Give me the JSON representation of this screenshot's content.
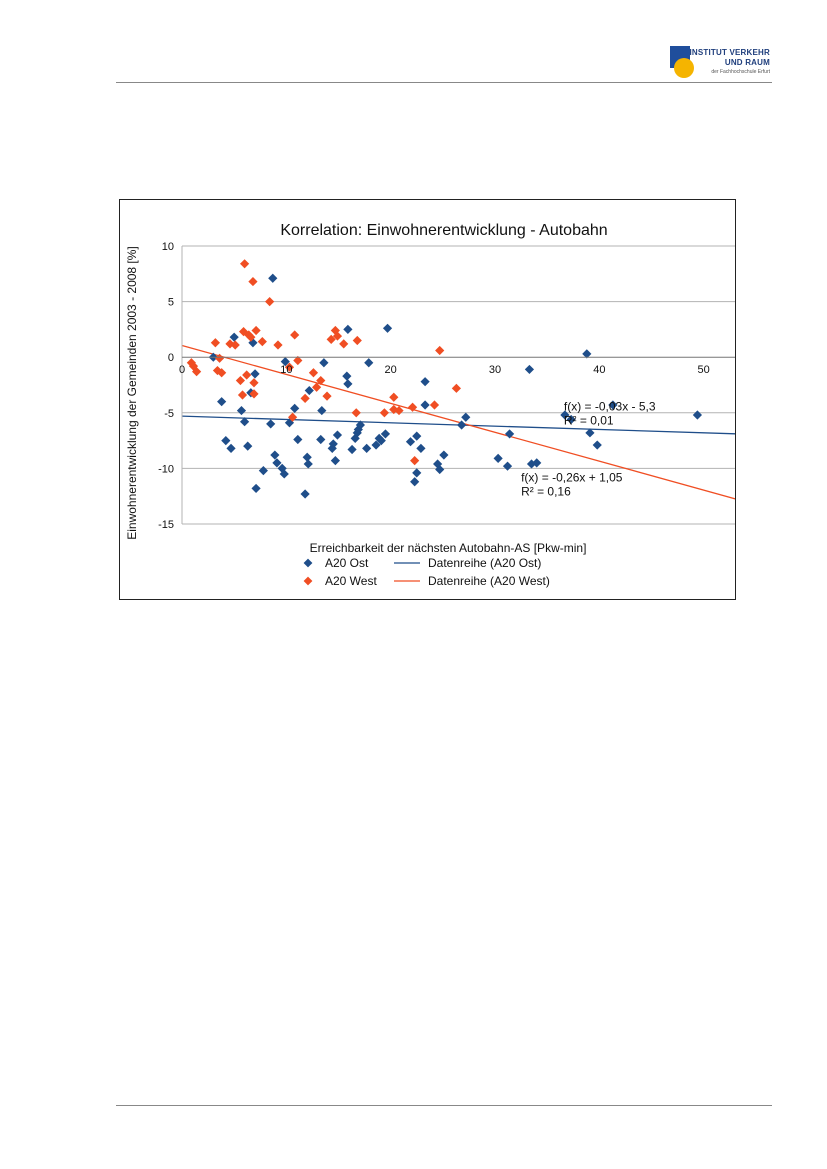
{
  "logo": {
    "line1": "INSTITUT VERKEHR",
    "line2": "UND RAUM",
    "line3": "der Fachhochschule Erfurt"
  },
  "colors": {
    "ost": "#1f4e8a",
    "west": "#f04e23",
    "grid": "#b3b3b3"
  },
  "chart_data": {
    "type": "scatter",
    "title": "Korrelation: Einwohnerentwicklung - Autobahn",
    "xlabel": "Erreichbarkeit der nächsten Autobahn-AS [Pkw-min]",
    "ylabel": "Einwohnerentwicklung der Gemeinden 2003 - 2008 [%]",
    "xlim": [
      0,
      60
    ],
    "ylim": [
      -15,
      10
    ],
    "xticks": [
      "0",
      "10",
      "20",
      "30",
      "40",
      "50",
      "60"
    ],
    "yticks": [
      "10",
      "5",
      "0",
      "-5",
      "-10",
      "-15"
    ],
    "grid": "horizontal",
    "legend_position": "bottom",
    "series": [
      {
        "name": "A20 Ost",
        "marker": "diamond",
        "points": [
          [
            3,
            0
          ],
          [
            3.8,
            -4
          ],
          [
            4.2,
            -7.5
          ],
          [
            4.7,
            -8.2
          ],
          [
            5,
            1.8
          ],
          [
            5.7,
            -4.8
          ],
          [
            6,
            -5.8
          ],
          [
            6.3,
            -8
          ],
          [
            6.6,
            -3.2
          ],
          [
            6.8,
            1.3
          ],
          [
            7,
            -1.5
          ],
          [
            7.1,
            -11.8
          ],
          [
            7.8,
            -10.2
          ],
          [
            8.5,
            -6
          ],
          [
            8.7,
            7.1
          ],
          [
            8.9,
            -8.8
          ],
          [
            9.1,
            -9.5
          ],
          [
            9.6,
            -10
          ],
          [
            9.8,
            -10.5
          ],
          [
            9.9,
            -0.4
          ],
          [
            10.3,
            -5.9
          ],
          [
            10.8,
            -4.6
          ],
          [
            11.1,
            -7.4
          ],
          [
            11.8,
            -12.3
          ],
          [
            12,
            -9
          ],
          [
            12.1,
            -9.6
          ],
          [
            12.2,
            -3
          ],
          [
            13.3,
            -7.4
          ],
          [
            13.4,
            -4.8
          ],
          [
            13.6,
            -0.5
          ],
          [
            14.4,
            -8.2
          ],
          [
            14.5,
            -7.8
          ],
          [
            14.7,
            -9.3
          ],
          [
            14.9,
            -7
          ],
          [
            15.8,
            -1.7
          ],
          [
            15.9,
            -2.4
          ],
          [
            15.9,
            2.5
          ],
          [
            16.3,
            -8.3
          ],
          [
            16.6,
            -7.3
          ],
          [
            16.8,
            -6.8
          ],
          [
            16.9,
            -6.5
          ],
          [
            17.1,
            -6.1
          ],
          [
            17.7,
            -8.2
          ],
          [
            17.9,
            -0.5
          ],
          [
            18.6,
            -7.9
          ],
          [
            18.9,
            -7.3
          ],
          [
            19.1,
            -7.5
          ],
          [
            19.5,
            -6.9
          ],
          [
            19.7,
            2.6
          ],
          [
            21.9,
            -7.6
          ],
          [
            22.3,
            -11.2
          ],
          [
            22.5,
            -7.1
          ],
          [
            22.5,
            -10.4
          ],
          [
            22.9,
            -8.2
          ],
          [
            23.3,
            -2.2
          ],
          [
            23.3,
            -4.3
          ],
          [
            24.5,
            -9.6
          ],
          [
            24.7,
            -10.1
          ],
          [
            25.1,
            -8.8
          ],
          [
            26.8,
            -6.1
          ],
          [
            27.2,
            -5.4
          ],
          [
            30.3,
            -9.1
          ],
          [
            31.2,
            -9.8
          ],
          [
            31.4,
            -6.9
          ],
          [
            33.3,
            -1.1
          ],
          [
            33.5,
            -9.6
          ],
          [
            34,
            -9.5
          ],
          [
            36.7,
            -5.2
          ],
          [
            37.3,
            -5.6
          ],
          [
            38.8,
            0.3
          ],
          [
            39.1,
            -6.8
          ],
          [
            39.8,
            -7.9
          ],
          [
            41.3,
            -4.3
          ],
          [
            49.4,
            -5.2
          ]
        ]
      },
      {
        "name": "A20 West",
        "marker": "diamond",
        "points": [
          [
            0.9,
            -0.5
          ],
          [
            1.1,
            -0.8
          ],
          [
            1.4,
            -1.3
          ],
          [
            3.2,
            1.3
          ],
          [
            3.4,
            -1.2
          ],
          [
            3.6,
            -0.1
          ],
          [
            3.8,
            -1.4
          ],
          [
            4.6,
            1.2
          ],
          [
            5.1,
            1.1
          ],
          [
            5.6,
            -2.1
          ],
          [
            5.8,
            -3.4
          ],
          [
            5.9,
            2.3
          ],
          [
            6,
            8.4
          ],
          [
            6.2,
            -1.6
          ],
          [
            6.4,
            2
          ],
          [
            6.6,
            1.8
          ],
          [
            6.8,
            6.8
          ],
          [
            6.9,
            -2.3
          ],
          [
            6.9,
            -3.3
          ],
          [
            7.1,
            2.4
          ],
          [
            7.7,
            1.4
          ],
          [
            8.4,
            5
          ],
          [
            9.2,
            1.1
          ],
          [
            10.3,
            -0.9
          ],
          [
            10.6,
            -5.4
          ],
          [
            10.8,
            2
          ],
          [
            11.1,
            -0.3
          ],
          [
            11.8,
            -3.7
          ],
          [
            12.6,
            -1.4
          ],
          [
            12.9,
            -2.7
          ],
          [
            13.3,
            -2.1
          ],
          [
            13.9,
            -3.5
          ],
          [
            14.3,
            1.6
          ],
          [
            14.7,
            2.4
          ],
          [
            14.9,
            1.9
          ],
          [
            15.5,
            1.2
          ],
          [
            16.7,
            -5
          ],
          [
            16.8,
            1.5
          ],
          [
            19.4,
            -5
          ],
          [
            20.3,
            -4.7
          ],
          [
            20.3,
            -3.6
          ],
          [
            20.8,
            -4.8
          ],
          [
            22.1,
            -4.5
          ],
          [
            22.3,
            -9.3
          ],
          [
            24.2,
            -4.3
          ],
          [
            24.7,
            0.6
          ],
          [
            26.3,
            -2.8
          ]
        ]
      },
      {
        "name": "Datenreihe (A20 Ost)",
        "type": "line",
        "x": [
          0,
          60
        ],
        "y": [
          -5.3,
          -7.1
        ]
      },
      {
        "name": "Datenreihe (A20 West)",
        "type": "line",
        "x": [
          0,
          60
        ],
        "y": [
          1.05,
          -14.55
        ]
      }
    ],
    "annotations": [
      {
        "text_line1": "f(x) = -0,03x - 5,3",
        "text_line2": "R² = 0,01",
        "anchor": [
          36.6,
          -4.8
        ]
      },
      {
        "text_line1": "f(x) = -0,26x + 1,05",
        "text_line2": "R² = 0,16",
        "anchor": [
          32.5,
          -11.2
        ]
      }
    ]
  }
}
